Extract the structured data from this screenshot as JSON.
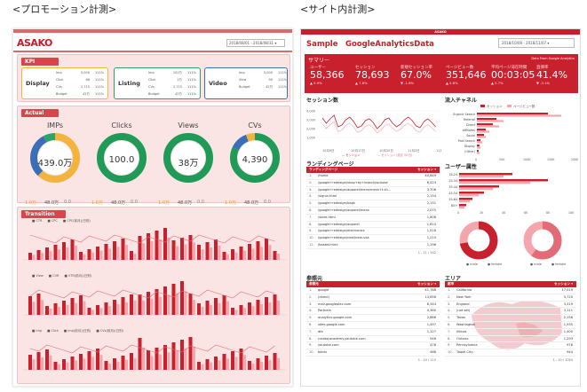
{
  "headings": {
    "left": "<プロモーション計測>",
    "right": "<サイト内計測>"
  },
  "left": {
    "logo": "ASAKO",
    "date_range": "2018/08/01 - 2018/08/31 ▾",
    "kpi_label": "KPI",
    "kpi_groups": [
      {
        "name": "Display",
        "color": "#f2b43c",
        "rows": [
          [
            "Imp",
            "5,000",
            "111%"
          ],
          [
            "Click",
            "66",
            "111%"
          ],
          [
            "CVs",
            "2,715",
            "111%"
          ],
          [
            "Budget",
            "42万",
            "111%"
          ]
        ]
      },
      {
        "name": "Listing",
        "color": "#2ea36a",
        "rows": [
          [
            "Imp",
            "101万",
            "111%"
          ],
          [
            "Click",
            "1万",
            "111%"
          ],
          [
            "CVs",
            "2,715",
            "111%"
          ],
          [
            "Budget",
            "42万",
            "111%"
          ]
        ]
      },
      {
        "name": "Video",
        "color": "#3a6fb8",
        "rows": [
          [
            "Imp",
            "5,000",
            "111%"
          ],
          [
            "View",
            "90",
            "111%"
          ],
          [
            "Budget",
            "42万",
            "111%"
          ]
        ]
      }
    ],
    "actual_label": "Actual",
    "donuts": [
      {
        "title": "IMPs",
        "value": "439.0万",
        "subs": [
          "1.0万",
          "48.0万",
          "0.0"
        ]
      },
      {
        "title": "Clicks",
        "value": "100.0",
        "subs": [
          "1.0万",
          "48.0万",
          "0.0"
        ]
      },
      {
        "title": "Views",
        "value": "38万",
        "subs": [
          "1.0万",
          "48.0万",
          "0.0"
        ]
      },
      {
        "title": "CVs",
        "value": "4,390",
        "subs": [
          "1.0万",
          "48.0万",
          "0.0"
        ]
      }
    ],
    "transition_label": "Transition",
    "trend_legends": [
      [
        "CTR",
        "CPC",
        "CPC(前月)(日別)"
      ],
      [
        "View",
        "CVR",
        "VTR(前月)(日別)"
      ],
      [
        "Imp",
        "Click",
        "Imp(前月)(日別)",
        "CVs(前月)(日別)"
      ]
    ]
  },
  "right": {
    "topbar": "ASAKO",
    "title": "Sample　GoogleAnalyticsData",
    "date_range": "2018/10/09 - 2018/11/07 ▾",
    "summary_label": "サマリー",
    "summary_source": "Data From Google Analytics",
    "kpis": [
      {
        "label": "ユーザー",
        "value": "58,366",
        "change": "▲ 5.9%"
      },
      {
        "label": "セッション",
        "value": "78,693",
        "change": "▲ 7.8%"
      },
      {
        "label": "新規セッション率",
        "value": "67.0%",
        "change": "▼ -1.6%"
      },
      {
        "label": "ページビュー数",
        "value": "351,646",
        "change": "▲ 5.6%"
      },
      {
        "label": "平均ページ滞在時間",
        "value": "00:03:05",
        "change": "▲ 5.7%"
      },
      {
        "label": "直帰率",
        "value": "41.4%",
        "change": "▼ -3.1%"
      }
    ],
    "sessions_title": "セッション数",
    "sessions_legend": [
      "セッション",
      "セッション (過去 30 日)"
    ],
    "sessions_axis": [
      "10月9日",
      "10月17日",
      "10月25日",
      "11月2日",
      "11月6日"
    ],
    "sessions_ticks": [
      "4,000",
      "3,000",
      "2,000",
      "1,000"
    ],
    "inflow_title": "流入チャネル",
    "inflow_legend": [
      "セッション",
      "ページビュー数"
    ],
    "inflow_channels": [
      "Organic Search",
      "Referral",
      "Direct",
      "Affiliates",
      "Social",
      "Paid Search",
      "Display",
      "(Other)"
    ],
    "inflow_axis": [
      "0",
      "50K",
      "100K",
      "150K",
      "200K"
    ],
    "landing_title": "ランディングページ",
    "landing_header": "ランディングページ",
    "landing_col": "セッション ▾",
    "landing": [
      [
        "1.",
        "/home",
        "40,849"
      ],
      [
        "2.",
        "/google+redesign/shop+by+brand/youtube",
        "6,523"
      ],
      [
        "3.",
        "/google+redesign/apparel/mens/mens+t-sh...",
        "3,706"
      ],
      [
        "4.",
        "/signin.html",
        "2,154"
      ],
      [
        "5.",
        "/google+redesign/bags",
        "2,151"
      ],
      [
        "6.",
        "/google+redesign/apparel/mens",
        "2,075"
      ],
      [
        "7.",
        "/store.html",
        "1,806"
      ],
      [
        "8.",
        "/google+redesign/apparel",
        "1,614"
      ],
      [
        "9.",
        "/google+redesign/electronics",
        "1,518"
      ],
      [
        "10.",
        "/google+redesign/nest/nest-usa",
        "1,210"
      ],
      [
        "11.",
        "/basket.html",
        "1,196"
      ]
    ],
    "landing_pager": "1 - 11 / 342",
    "user_title": "ユーザー属性",
    "age_groups": [
      "18-24",
      "25-34",
      "35-44",
      "45-54",
      "55-64",
      "65+"
    ],
    "user_axis": [
      "0",
      "2K",
      "4K",
      "6K",
      "8K",
      "10K"
    ],
    "gender_legend": [
      "male",
      "female"
    ],
    "ref_title": "参照元",
    "ref_header": "参照元",
    "ref_col": "セッション ▾",
    "referrals": [
      [
        "1.",
        "google",
        "41,786"
      ],
      [
        "2.",
        "(direct)",
        "13,656"
      ],
      [
        "3.",
        "mall.googleplex.com",
        "8,344"
      ],
      [
        "4.",
        "Partners",
        "4,360"
      ],
      [
        "5.",
        "analytics.google.com",
        "2,866"
      ],
      [
        "6.",
        "sites.google.com",
        "1,497"
      ],
      [
        "7.",
        "dfa",
        "1,127"
      ],
      [
        "8.",
        "creatoracademy.youtube.com",
        "546"
      ],
      [
        "9.",
        "youtube.com",
        "478"
      ],
      [
        "10.",
        "baidu",
        "466"
      ]
    ],
    "ref_pager": "1 - 10 / 115",
    "area_title": "エリア",
    "area_header": "都市",
    "area_col": "セッション ▾",
    "areas": [
      [
        "1.",
        "California",
        "17,019"
      ],
      [
        "2.",
        "New York",
        "3,720"
      ],
      [
        "3.",
        "England",
        "3,319"
      ],
      [
        "4.",
        "(not set)",
        "3,111"
      ],
      [
        "5.",
        "Texas",
        "2,156"
      ],
      [
        "6.",
        "Washington",
        "1,935"
      ],
      [
        "7.",
        "Illinois",
        "1,400"
      ],
      [
        "8.",
        "Ontario",
        "1,293"
      ],
      [
        "9.",
        "Pennsylvania",
        "978"
      ],
      [
        "10.",
        "Taipei City",
        "944"
      ]
    ],
    "area_pager": "1 - 10 / 1054"
  }
}
